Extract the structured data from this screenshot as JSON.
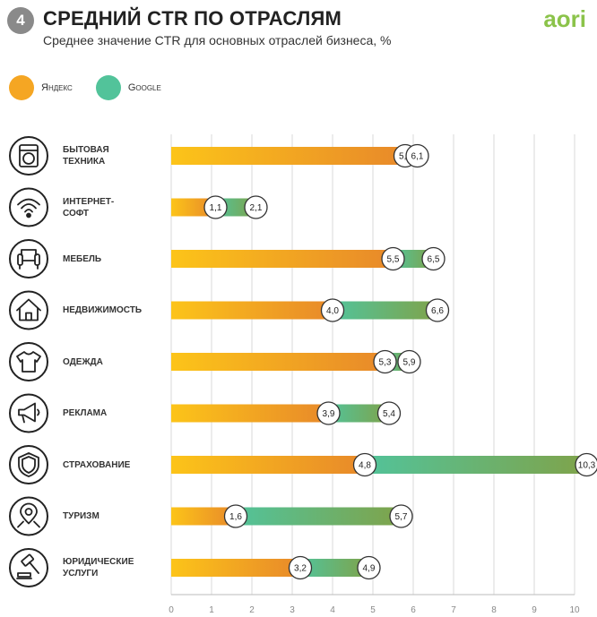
{
  "header": {
    "number": "4",
    "title": "СРЕДНИЙ CTR ПО ОТРАСЛЯМ",
    "subtitle": "Среднее значение CTR для основных отраслей бизнеса, %",
    "logo": "aori"
  },
  "colors": {
    "yandex_start": "#fcc419",
    "yandex_end": "#e8892a",
    "google_start": "#52c39a",
    "google_end": "#7fa34a",
    "grid": "#d9d9d9",
    "logo": "#8bc34a"
  },
  "legend": [
    {
      "label": "Яндекс",
      "color": "#f5a623"
    },
    {
      "label": "Google",
      "color": "#52c39a"
    }
  ],
  "chart_data": {
    "type": "bar",
    "orientation": "horizontal",
    "title": "СРЕДНИЙ CTR ПО ОТРАСЛЯМ",
    "subtitle": "Среднее значение CTR для основных отраслей бизнеса, %",
    "categories": [
      [
        "БЫТОВАЯ",
        "ТЕХНИКА"
      ],
      [
        "ИНТЕРНЕТ-",
        "СОФТ"
      ],
      [
        "МЕБЕЛЬ"
      ],
      [
        "НЕДВИЖИМОСТЬ"
      ],
      [
        "ОДЕЖДА"
      ],
      [
        "РЕКЛАМА"
      ],
      [
        "СТРАХОВАНИЕ"
      ],
      [
        "ТУРИЗМ"
      ],
      [
        "ЮРИДИЧЕСКИЕ",
        "УСЛУГИ"
      ]
    ],
    "icons": [
      "washing-machine-icon",
      "wifi-icon",
      "armchair-icon",
      "house-icon",
      "tshirt-icon",
      "megaphone-icon",
      "shield-icon",
      "map-pin-icon",
      "gavel-icon"
    ],
    "series": [
      {
        "name": "Яндекс",
        "values": [
          5.8,
          1.1,
          5.5,
          4.0,
          5.3,
          3.9,
          4.8,
          1.6,
          3.2
        ],
        "labels": [
          "5,8",
          "1,1",
          "5,5",
          "4,0",
          "5,3",
          "3,9",
          "4,8",
          "1,6",
          "3,2"
        ]
      },
      {
        "name": "Google",
        "values": [
          6.1,
          2.1,
          6.5,
          6.6,
          5.9,
          5.4,
          10.3,
          5.7,
          4.9
        ],
        "labels": [
          "6,1",
          "2,1",
          "6,5",
          "6,6",
          "5,9",
          "5,4",
          "10,3",
          "5,7",
          "4,9"
        ]
      }
    ],
    "xlim": [
      0,
      10
    ],
    "xticks": [
      "0",
      "1",
      "2",
      "3",
      "4",
      "5",
      "6",
      "7",
      "8",
      "9",
      "10"
    ],
    "grid": true,
    "legend_position": "top-left"
  }
}
